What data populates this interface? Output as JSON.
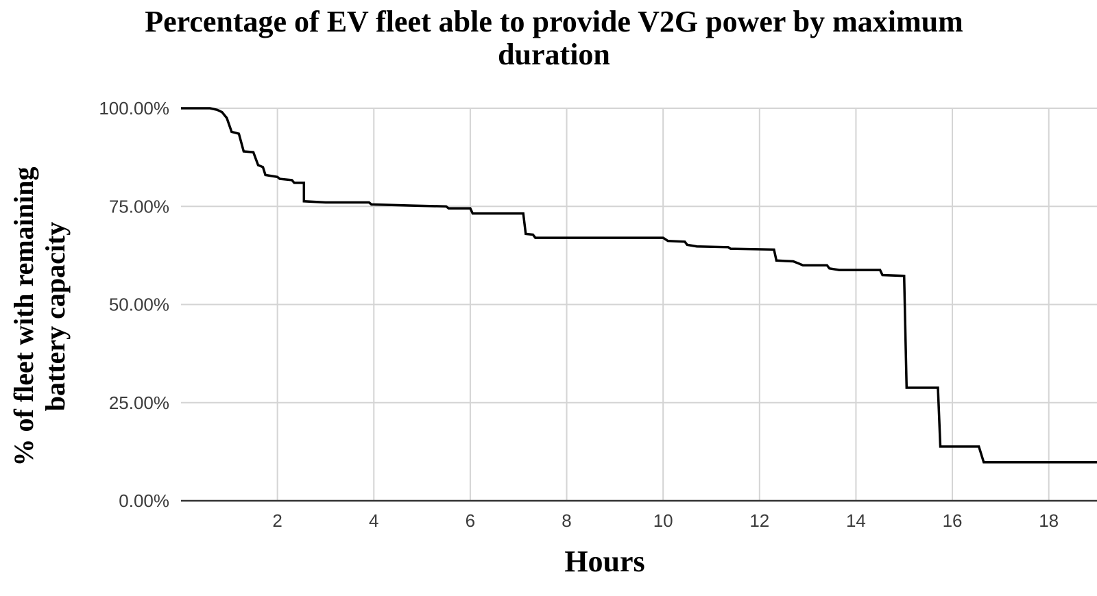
{
  "chart_data": {
    "type": "line",
    "title": [
      "Percentage of EV fleet able to provide V2G power by maximum",
      "duration"
    ],
    "xlabel": "Hours",
    "ylabel": [
      "% of fleet with remaining",
      "battery capacity"
    ],
    "xlim": [
      0,
      19
    ],
    "ylim": [
      0,
      100
    ],
    "x_ticks": [
      2,
      4,
      6,
      8,
      10,
      12,
      14,
      16,
      18
    ],
    "y_ticks": [
      0,
      25,
      50,
      75,
      100
    ],
    "y_tick_labels": [
      "0.00%",
      "25.00%",
      "50.00%",
      "75.00%",
      "100.00%"
    ],
    "grid": true,
    "line_color": "#000000",
    "series": [
      {
        "values": [
          [
            0,
            100
          ],
          [
            0.6,
            100
          ],
          [
            0.75,
            99.6
          ],
          [
            0.85,
            99
          ],
          [
            0.95,
            97.5
          ],
          [
            1.05,
            94
          ],
          [
            1.2,
            93.5
          ],
          [
            1.3,
            89
          ],
          [
            1.5,
            88.8
          ],
          [
            1.6,
            85.5
          ],
          [
            1.7,
            85
          ],
          [
            1.75,
            83
          ],
          [
            2.0,
            82.5
          ],
          [
            2.05,
            82
          ],
          [
            2.3,
            81.7
          ],
          [
            2.35,
            81
          ],
          [
            2.55,
            81
          ],
          [
            2.55,
            76.3
          ],
          [
            3.0,
            76
          ],
          [
            3.9,
            76
          ],
          [
            3.95,
            75.5
          ],
          [
            4.8,
            75.2
          ],
          [
            5.5,
            75
          ],
          [
            5.55,
            74.5
          ],
          [
            6.0,
            74.5
          ],
          [
            6.05,
            73.2
          ],
          [
            7.1,
            73.2
          ],
          [
            7.15,
            68
          ],
          [
            7.3,
            67.8
          ],
          [
            7.35,
            67
          ],
          [
            10.0,
            67
          ],
          [
            10.1,
            66.2
          ],
          [
            10.45,
            66
          ],
          [
            10.5,
            65.2
          ],
          [
            10.7,
            64.8
          ],
          [
            11.35,
            64.6
          ],
          [
            11.4,
            64.2
          ],
          [
            12.3,
            64
          ],
          [
            12.35,
            61.2
          ],
          [
            12.7,
            61
          ],
          [
            12.8,
            60.5
          ],
          [
            12.9,
            60
          ],
          [
            13.4,
            60
          ],
          [
            13.45,
            59.2
          ],
          [
            13.65,
            58.8
          ],
          [
            14.5,
            58.8
          ],
          [
            14.55,
            57.5
          ],
          [
            15.0,
            57.3
          ],
          [
            15.05,
            28.8
          ],
          [
            15.7,
            28.8
          ],
          [
            15.75,
            13.8
          ],
          [
            16.55,
            13.8
          ],
          [
            16.65,
            9.8
          ],
          [
            19,
            9.8
          ]
        ]
      }
    ]
  }
}
